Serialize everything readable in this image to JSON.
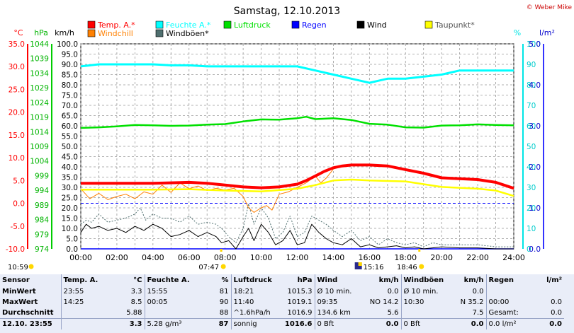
{
  "title": "Samstag, 12.10.2013",
  "copyright": "© Weber Mike",
  "chart_data": {
    "type": "line",
    "x_unit": "hours",
    "xlim": [
      0,
      24
    ],
    "xticks": [
      "00:00",
      "02:00",
      "04:00",
      "06:00",
      "08:00",
      "10:00",
      "12:00",
      "14:00",
      "16:00",
      "18:00",
      "20:00",
      "22:00",
      "24:00"
    ],
    "axes": {
      "temp_c": {
        "label": "°C",
        "ticks": [
          "35.0",
          "30.0",
          "25.0",
          "20.0",
          "15.0",
          "10.0",
          "5.0",
          "0.0",
          "-5.0",
          "-10.0"
        ],
        "min": -10,
        "max": 35,
        "color": "#ff0000"
      },
      "hpa": {
        "label": "hPa",
        "ticks": [
          "1044",
          "1039",
          "1034",
          "1029",
          "1024",
          "1019",
          "1014",
          "1009",
          "1004",
          "999",
          "994",
          "989",
          "984",
          "979",
          "974"
        ],
        "min": 974,
        "max": 1044,
        "color": "#00b400"
      },
      "kmh": {
        "label": "km/h",
        "ticks": [
          "100.0",
          "95.0",
          "90.0",
          "85.0",
          "80.0",
          "75.0",
          "70.0",
          "65.0",
          "60.0",
          "55.0",
          "50.0",
          "45.0",
          "40.0",
          "35.0",
          "30.0",
          "25.0",
          "20.0",
          "15.0",
          "10.0",
          "5.0",
          "0.0"
        ],
        "min": 0,
        "max": 100,
        "color": "#000000"
      },
      "pct": {
        "label": "%",
        "ticks": [
          "100",
          "90",
          "80",
          "70",
          "60",
          "50",
          "40",
          "30",
          "20",
          "10",
          "0"
        ],
        "min": 0,
        "max": 100,
        "color": "#00e5e5"
      },
      "lm2": {
        "label": "l/m²",
        "ticks": [
          "5.0",
          "4.0",
          "3.0",
          "2.0",
          "1.0",
          "0.0"
        ],
        "min": 0,
        "max": 5,
        "color": "#0000cc"
      }
    },
    "legend": [
      {
        "name": "Temp. A.*",
        "color": "#ff0000"
      },
      {
        "name": "Feuchte A.*",
        "color": "#00ffff"
      },
      {
        "name": "Luftdruck",
        "color": "#00e000"
      },
      {
        "name": "Regen",
        "color": "#0000ff"
      },
      {
        "name": "Wind",
        "color": "#000000"
      },
      {
        "name": "Taupunkt*",
        "color": "#ffff00"
      },
      {
        "name": "Windchill",
        "color": "#ff8000"
      },
      {
        "name": "Windböen*",
        "color": "#4f6f6f"
      }
    ],
    "series": [
      {
        "name": "Temp. A.*",
        "axis": "temp_c",
        "color": "#ff0000",
        "x": [
          0,
          2,
          4,
          6,
          7,
          8,
          9,
          10,
          11,
          12,
          12.5,
          13,
          13.5,
          14,
          14.5,
          15,
          16,
          17,
          18,
          19,
          20,
          21,
          22,
          23,
          24
        ],
        "y": [
          4.4,
          4.4,
          4.4,
          4.6,
          4.4,
          4.0,
          3.6,
          3.4,
          3.6,
          4.2,
          5.0,
          6.0,
          7.0,
          7.8,
          8.2,
          8.4,
          8.4,
          8.2,
          7.4,
          6.6,
          5.6,
          5.4,
          5.2,
          4.6,
          3.3
        ]
      },
      {
        "name": "Feuchte A.*",
        "axis": "pct",
        "color": "#00ffff",
        "x": [
          0,
          1,
          2,
          3,
          4,
          5,
          6,
          7,
          8,
          9,
          10,
          11,
          12,
          13,
          14,
          15,
          15.5,
          16,
          16.5,
          17,
          18,
          19,
          20,
          21,
          22,
          23,
          24
        ],
        "y": [
          89,
          90,
          90,
          90,
          90,
          89.5,
          89.5,
          89,
          89,
          89,
          89,
          89,
          89,
          87,
          85,
          83,
          82,
          81,
          82,
          83,
          83,
          84,
          85,
          87,
          87,
          87,
          87
        ]
      },
      {
        "name": "Luftdruck",
        "axis": "hpa",
        "color": "#00e000",
        "x": [
          0,
          1,
          2,
          3,
          4,
          5,
          6,
          7,
          8,
          9,
          10,
          11,
          12,
          12.5,
          13,
          14,
          15,
          16,
          17,
          18,
          19,
          20,
          21,
          22,
          23,
          24
        ],
        "y": [
          1015.3,
          1015.5,
          1015.8,
          1016.3,
          1016.2,
          1016.0,
          1016.1,
          1016.4,
          1016.6,
          1017.5,
          1018.2,
          1018.1,
          1018.6,
          1019.1,
          1018.3,
          1018.6,
          1018.0,
          1016.7,
          1016.4,
          1015.5,
          1015.4,
          1016.1,
          1016.2,
          1016.5,
          1016.3,
          1016.2
        ]
      },
      {
        "name": "Taupunkt*",
        "axis": "temp_c",
        "color": "#ffff00",
        "x": [
          0,
          2,
          4,
          6,
          8,
          10,
          12,
          13,
          14,
          15,
          16,
          18,
          20,
          22,
          23,
          24
        ],
        "y": [
          3.0,
          3.0,
          3.0,
          3.1,
          2.8,
          2.6,
          3.2,
          4.0,
          5.0,
          5.2,
          5.0,
          4.8,
          3.6,
          3.2,
          2.8,
          1.6
        ]
      },
      {
        "name": "Windchill",
        "axis": "temp_c",
        "color": "#ff8000",
        "x": [
          0,
          0.5,
          1,
          1.5,
          2,
          2.5,
          3,
          3.5,
          4,
          4.5,
          5,
          5.5,
          6,
          6.5,
          7,
          7.5,
          8,
          8.5,
          9,
          9.3,
          9.6,
          10,
          10.3,
          10.6,
          11,
          11.5,
          12,
          12.5,
          13,
          13.3,
          13.6,
          14,
          14.5
        ],
        "y": [
          3.2,
          1.0,
          2.2,
          0.8,
          1.5,
          2.0,
          1.0,
          2.5,
          2.0,
          4.0,
          2.4,
          4.5,
          3.2,
          3.8,
          2.8,
          3.3,
          2.9,
          3.3,
          1.5,
          -1.0,
          -2.0,
          -1.0,
          -0.5,
          -1.5,
          2.0,
          2.5,
          3.5,
          4.5,
          6.0,
          4.5,
          5.5,
          7.5,
          8.2
        ]
      },
      {
        "name": "Wind",
        "axis": "kmh",
        "color": "#000000",
        "x": [
          0,
          0.3,
          0.6,
          1,
          1.5,
          2,
          2.5,
          3,
          3.5,
          4,
          4.5,
          5,
          5.5,
          6,
          6.5,
          7,
          7.5,
          7.8,
          8.2,
          8.6,
          9,
          9.3,
          9.6,
          10,
          10.4,
          10.8,
          11.2,
          11.6,
          12,
          12.4,
          12.8,
          13.2,
          13.6,
          14,
          14.5,
          15,
          15.5,
          16,
          16.5,
          17,
          17.5,
          18,
          18.5,
          19,
          19.5,
          20,
          21,
          22,
          23,
          24
        ],
        "y": [
          8,
          12,
          10,
          11,
          9,
          10,
          8,
          11,
          9,
          12,
          10,
          6,
          7,
          9,
          6,
          8,
          6,
          3,
          4,
          0,
          6,
          10,
          4,
          12,
          8,
          2,
          4,
          9,
          2,
          3,
          12,
          8,
          5,
          3,
          2,
          5,
          1,
          2,
          0.5,
          1,
          1.5,
          0.5,
          1,
          0,
          0.5,
          1,
          0.5,
          0.5,
          0,
          0
        ]
      },
      {
        "name": "Windböen*",
        "axis": "kmh",
        "color": "#4f6f6f",
        "x": [
          0,
          0.3,
          0.6,
          1,
          1.5,
          2,
          2.5,
          3,
          3.3,
          3.6,
          4,
          4.5,
          5,
          5.5,
          6,
          6.5,
          7,
          7.5,
          7.8,
          8.2,
          8.6,
          9,
          9.3,
          9.6,
          10,
          10.4,
          10.8,
          11.2,
          11.6,
          12,
          12.4,
          12.8,
          13.2,
          13.6,
          14,
          14.5,
          15,
          15.5,
          16,
          16.5,
          17,
          17.5,
          18,
          18.5,
          19,
          19.5,
          20,
          21,
          22,
          23,
          24
        ],
        "y": [
          12,
          14,
          13,
          17,
          13,
          14,
          15,
          17,
          20,
          14,
          17,
          15,
          15,
          13,
          16,
          12,
          13,
          12,
          10,
          6,
          3,
          10,
          22,
          12,
          20,
          15,
          5,
          8,
          16,
          6,
          8,
          16,
          14,
          12,
          9,
          6,
          9,
          4,
          6,
          2,
          5,
          3,
          2,
          3,
          1,
          3,
          2,
          2,
          2,
          1,
          1
        ]
      },
      {
        "name": "Regen",
        "axis": "lm2",
        "color": "#0000ff",
        "x": [
          0,
          24
        ],
        "y": [
          0,
          0
        ]
      }
    ],
    "reference_line": {
      "axis": "temp_c",
      "y": 0,
      "color": "#0000ff",
      "style": "dashed"
    },
    "markers": [
      {
        "label": "10:59",
        "symbol": "sun",
        "row": "low"
      },
      {
        "label": "07:47",
        "symbol": "sun",
        "row": "high"
      },
      {
        "label": "15:16",
        "symbol": "moon",
        "row": "high"
      },
      {
        "label": "18:46",
        "symbol": "sun",
        "row": "high"
      }
    ]
  },
  "stats": {
    "headers": {
      "sensor": "Sensor",
      "temp": "Temp. A.",
      "temp_u": "°C",
      "hum": "Feuchte A.",
      "hum_u": "%",
      "press": "Luftdruck",
      "press_u": "hPa",
      "wind": "Wind",
      "wind_u": "km/h",
      "gust": "Windböen",
      "gust_u": "km/h",
      "rain": "Regen",
      "rain_u": "l/m²"
    },
    "rows": [
      {
        "label": "MinWert",
        "temp_t": "23:55",
        "temp_v": "3.3",
        "hum_t": "15:55",
        "hum_v": "81",
        "press_t": "18:21",
        "press_v": "1015.3",
        "wind_t": "Ø 10 min.",
        "wind_v": "0.0",
        "gust_t": "Ø 10 min.",
        "gust_v": "0.0",
        "rain_t": "",
        "rain_v": ""
      },
      {
        "label": "MaxWert",
        "temp_t": "14:25",
        "temp_v": "8.5",
        "hum_t": "00:05",
        "hum_v": "90",
        "press_t": "11:40",
        "press_v": "1019.1",
        "wind_t": "09:35",
        "wind_v": "NO 14.2",
        "gust_t": "10:30",
        "gust_v": "N 35.2",
        "rain_t": "00:00",
        "rain_v": "0.0"
      },
      {
        "label": "Durchschnitt",
        "temp_t": "",
        "temp_v": "5.88",
        "hum_t": "",
        "hum_v": "88",
        "press_t": "^1.6hPa/h",
        "press_v": "1016.9",
        "wind_t": "134.6 km",
        "wind_v": "5.6",
        "gust_t": "",
        "gust_v": "7.5",
        "rain_t": "Gesamt:",
        "rain_v": "0.0"
      },
      {
        "label": "12.10. 23:55",
        "temp_t": "",
        "temp_v": "3.3",
        "hum_t": "5.28 g/m³",
        "hum_v": "87",
        "press_t": "sonnig",
        "press_v": "1016.6",
        "wind_t": "0 Bft",
        "wind_v": "0.0",
        "gust_t": "0 Bft",
        "gust_v": "0.0",
        "rain_t": "0.0 l/m²",
        "rain_v": "0.0"
      }
    ]
  }
}
